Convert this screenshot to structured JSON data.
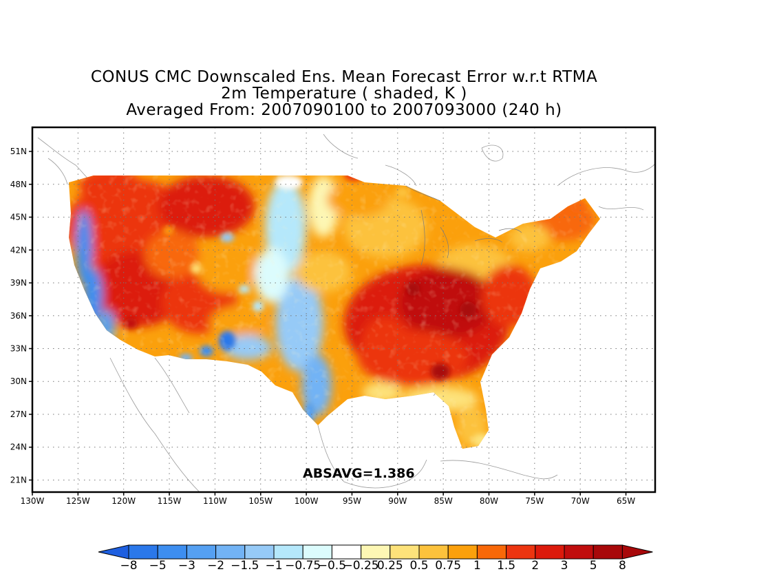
{
  "title": {
    "line1": "CONUS CMC Downscaled Ens. Mean Forecast Error w.r.t RTMA",
    "line2": "2m Temperature ( shaded, K )",
    "line3": "Averaged From: 2007090100 to 2007093000 (240 h)"
  },
  "map": {
    "lon_labels": [
      "130W",
      "125W",
      "120W",
      "115W",
      "110W",
      "105W",
      "100W",
      "95W",
      "90W",
      "85W",
      "80W",
      "75W",
      "70W",
      "65W"
    ],
    "lat_labels": [
      "51N",
      "48N",
      "45N",
      "42N",
      "39N",
      "36N",
      "33N",
      "30N",
      "27N",
      "24N",
      "21N"
    ],
    "grid": true,
    "lon_range": [
      -130,
      -61.8
    ],
    "lat_range": [
      19.9,
      53.2
    ],
    "field_min": -8,
    "field_max": 8
  },
  "stat": {
    "label": "ABSAVG=1.386"
  },
  "colorbar": {
    "labels": [
      "−8",
      "−5",
      "−3",
      "−2",
      "−1.5",
      "−1",
      "−0.75",
      "−0.5",
      "−0.25",
      "0.25",
      "0.5",
      "0.75",
      "1",
      "1.5",
      "2",
      "3",
      "5",
      "8"
    ],
    "colors": [
      "#1e5fe0",
      "#2b78ea",
      "#3d8ef0",
      "#55a0f2",
      "#72b3f5",
      "#96caf7",
      "#b5e8fb",
      "#dcfcfd",
      "#ffffff",
      "#fdf7b4",
      "#fde27a",
      "#fcc23c",
      "#fba00c",
      "#f86808",
      "#ec3510",
      "#dc1a0c",
      "#c00d0d",
      "#a8080a"
    ]
  }
}
